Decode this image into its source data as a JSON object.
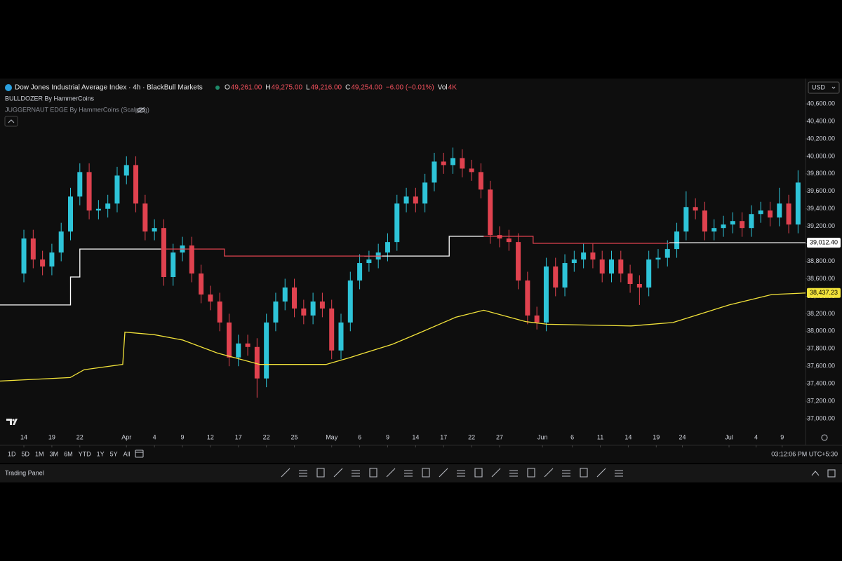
{
  "header": {
    "symbol": "Dow Jones Industrial Average Index · 4h · BlackBull Markets",
    "ohlc": [
      {
        "key": "O",
        "value": "49,261.00"
      },
      {
        "key": "H",
        "value": "49,275.00"
      },
      {
        "key": "L",
        "value": "49,216.00"
      },
      {
        "key": "C",
        "value": "49,254.00"
      }
    ],
    "change": "−6.00 (−0.01%)",
    "volume_key": "Vol",
    "volume": "4K",
    "indicators": [
      "BULLDOZER By HammerCoins",
      "JUGGERNAUT EDGE By HammerCoins (Scalping)"
    ],
    "currency": "USD"
  },
  "chart_data": {
    "type": "candlestick",
    "up_color": "#2ec4d8",
    "down_color": "#e0424f",
    "x": [
      0,
      1,
      2,
      3,
      4,
      5,
      6,
      7,
      8,
      9,
      10,
      11,
      12,
      13,
      14,
      15,
      16,
      17,
      18,
      19,
      20,
      21,
      22,
      23,
      24,
      25,
      26,
      27,
      28,
      29,
      30,
      31,
      32,
      33,
      34,
      35,
      36,
      37,
      38,
      39,
      40,
      41,
      42,
      43,
      44,
      45,
      46,
      47,
      48,
      49,
      50,
      51,
      52,
      53,
      54,
      55,
      56,
      57,
      58,
      59,
      60,
      61,
      62,
      63,
      64,
      65,
      66,
      67,
      68,
      69,
      70,
      71,
      72,
      73,
      74,
      75,
      76,
      77,
      78,
      79,
      80,
      81,
      82,
      83
    ],
    "open": [
      38660,
      39060,
      38820,
      38740,
      38900,
      39140,
      39540,
      39820,
      39380,
      39400,
      39460,
      39780,
      39900,
      39460,
      39140,
      39180,
      38620,
      38900,
      38980,
      38660,
      38420,
      38340,
      38100,
      37700,
      37860,
      37820,
      37460,
      38100,
      38340,
      38500,
      38260,
      38180,
      38340,
      38260,
      37780,
      38100,
      38580,
      38780,
      38820,
      38900,
      39020,
      39460,
      39540,
      39460,
      39700,
      39940,
      39900,
      39980,
      39860,
      39820,
      39620,
      39100,
      39060,
      39020,
      38580,
      38180,
      38100,
      38740,
      38500,
      38780,
      38820,
      38900,
      38820,
      38660,
      38820,
      38660,
      38540,
      38500,
      38820,
      38840,
      38940,
      39140,
      39420,
      39380,
      39140,
      39180,
      39220,
      39260,
      39180,
      39340,
      39380,
      39300,
      39460,
      39220
    ],
    "high": [
      39160,
      39160,
      38920,
      39000,
      39240,
      39640,
      39920,
      39920,
      39500,
      39560,
      39880,
      40000,
      40000,
      39560,
      39280,
      39280,
      39000,
      39080,
      39080,
      38760,
      38520,
      38440,
      38200,
      37960,
      37960,
      37920,
      38200,
      38440,
      38600,
      38600,
      38360,
      38440,
      38440,
      38360,
      38200,
      38680,
      38880,
      38920,
      39000,
      39120,
      39560,
      39640,
      39640,
      39800,
      40040,
      40040,
      40100,
      40080,
      39960,
      39920,
      39720,
      39200,
      39160,
      39120,
      38680,
      38280,
      38840,
      38840,
      38880,
      38920,
      39000,
      39000,
      38920,
      38920,
      38920,
      38760,
      38640,
      38920,
      38940,
      39040,
      39240,
      39600,
      39520,
      39480,
      39280,
      39320,
      39360,
      39360,
      39440,
      39480,
      39480,
      39640,
      39560,
      39840
    ],
    "low": [
      38560,
      38720,
      38640,
      38640,
      38800,
      39040,
      39440,
      39280,
      39280,
      39300,
      39360,
      39680,
      39360,
      39040,
      39040,
      38520,
      38520,
      38800,
      38560,
      38320,
      38240,
      38000,
      37600,
      37600,
      37720,
      37240,
      37360,
      38000,
      38240,
      38160,
      38080,
      38080,
      38160,
      37680,
      37680,
      38000,
      38480,
      38680,
      38720,
      38800,
      38920,
      39360,
      39360,
      39360,
      39600,
      39800,
      39800,
      39760,
      39720,
      39520,
      39000,
      38960,
      38920,
      38480,
      38080,
      38020,
      38000,
      38400,
      38400,
      38680,
      38720,
      38720,
      38560,
      38560,
      38560,
      38440,
      38300,
      38400,
      38720,
      38740,
      38840,
      39040,
      39280,
      39040,
      39040,
      39080,
      39120,
      39080,
      39080,
      39240,
      39200,
      39200,
      39120,
      39120
    ],
    "close": [
      39060,
      38820,
      38740,
      38900,
      39140,
      39540,
      39820,
      39380,
      39400,
      39460,
      39780,
      39900,
      39460,
      39140,
      39180,
      38620,
      38900,
      38980,
      38660,
      38420,
      38340,
      38100,
      37700,
      37860,
      37820,
      37460,
      38100,
      38340,
      38500,
      38260,
      38180,
      38340,
      38260,
      37780,
      38100,
      38580,
      38780,
      38820,
      38900,
      39020,
      39460,
      39540,
      39460,
      39700,
      39940,
      39900,
      39980,
      39860,
      39820,
      39620,
      39100,
      39060,
      39020,
      38580,
      38180,
      38100,
      38740,
      38500,
      38780,
      38820,
      38900,
      38820,
      38660,
      38820,
      38660,
      38540,
      38500,
      38820,
      38840,
      38940,
      39140,
      39420,
      39380,
      39140,
      39180,
      39220,
      39260,
      39180,
      39340,
      39380,
      39300,
      39460,
      39220,
      39700
    ],
    "series": [
      {
        "color": "#ffffff",
        "x": [
          -2.6,
          5,
          5,
          6,
          6,
          14.7,
          null,
          36.5,
          45.6,
          45.6,
          49.3,
          null,
          69.2,
          83.8
        ],
        "values": [
          38300,
          38300,
          38620,
          38620,
          38940,
          38940,
          null,
          38860,
          38860,
          39085,
          39085,
          null,
          39012.4,
          39012.4
        ]
      },
      {
        "color": "#e0424f",
        "x": [
          14.7,
          21.5,
          21.5,
          38.4,
          null,
          49.3,
          54.6,
          54.6,
          69.2
        ],
        "values": [
          38940,
          38940,
          38860,
          38860,
          null,
          39085,
          39085,
          39005,
          39005
        ]
      },
      {
        "color": "#f2e33a",
        "x": [
          -2.56,
          4.96,
          6.47,
          10.6,
          10.83,
          14,
          17,
          20.75,
          25.3,
          32.4,
          35,
          39.5,
          42.6,
          46.3,
          49.3,
          53.8,
          56.1,
          65.1,
          69.6,
          75.6,
          80.2,
          83.8
        ],
        "values": [
          37430,
          37470,
          37560,
          37620,
          37990,
          37960,
          37900,
          37750,
          37620,
          37620,
          37700,
          37850,
          37990,
          38160,
          38240,
          38110,
          38080,
          38060,
          38100,
          38300,
          38420,
          38437.23
        ]
      }
    ],
    "price_labels": [
      {
        "value": 39012.4,
        "label": "39,012.40",
        "color": "#ffffff"
      },
      {
        "value": 38437.23,
        "label": "38,437.23",
        "color": "#f2e33a"
      }
    ],
    "xlim": [
      -2.56,
      83.8
    ],
    "xticks": [
      {
        "value": 0,
        "label": "14"
      },
      {
        "value": 3,
        "label": "19"
      },
      {
        "value": 6,
        "label": "22"
      },
      {
        "value": 11,
        "label": "Apr"
      },
      {
        "value": 14,
        "label": "4"
      },
      {
        "value": 17,
        "label": "9"
      },
      {
        "value": 20,
        "label": "12"
      },
      {
        "value": 23,
        "label": "17"
      },
      {
        "value": 26,
        "label": "22"
      },
      {
        "value": 29,
        "label": "25"
      },
      {
        "value": 33,
        "label": "May"
      },
      {
        "value": 36,
        "label": "6"
      },
      {
        "value": 39,
        "label": "9"
      },
      {
        "value": 42,
        "label": "14"
      },
      {
        "value": 45,
        "label": "17"
      },
      {
        "value": 48,
        "label": "22"
      },
      {
        "value": 51,
        "label": "27"
      },
      {
        "value": 55.6,
        "label": "Jun"
      },
      {
        "value": 58.8,
        "label": "6"
      },
      {
        "value": 61.8,
        "label": "11"
      },
      {
        "value": 64.8,
        "label": "14"
      },
      {
        "value": 67.8,
        "label": "19"
      },
      {
        "value": 70.6,
        "label": "24"
      },
      {
        "value": 75.6,
        "label": "Jul"
      },
      {
        "value": 78.5,
        "label": "4"
      },
      {
        "value": 81.3,
        "label": "9"
      }
    ],
    "ylim": [
      36896,
      40665
    ],
    "yticks": [
      {
        "value": 37000,
        "label": "37,000.00"
      },
      {
        "value": 37200,
        "label": "37,200.00"
      },
      {
        "value": 37400,
        "label": "37,400.00"
      },
      {
        "value": 37600,
        "label": "37,600.00"
      },
      {
        "value": 37800,
        "label": "37,800.00"
      },
      {
        "value": 38000,
        "label": "38,000.00"
      },
      {
        "value": 38200,
        "label": "38,200.00"
      },
      {
        "value": 38400,
        "label": "38,400.00"
      },
      {
        "value": 38600,
        "label": "38,600.00"
      },
      {
        "value": 38800,
        "label": "38,800.00"
      },
      {
        "value": 39000,
        "label": "39,000.00"
      },
      {
        "value": 39200,
        "label": "39,200.00"
      },
      {
        "value": 39400,
        "label": "39,400.00"
      },
      {
        "value": 39600,
        "label": "39,600.00"
      },
      {
        "value": 39800,
        "label": "39,800.00"
      },
      {
        "value": 40000,
        "label": "40,000.00"
      },
      {
        "value": 40200,
        "label": "40,200.00"
      },
      {
        "value": 40400,
        "label": "40,400.00"
      },
      {
        "value": 40600,
        "label": "40,600.00"
      }
    ]
  },
  "footer": {
    "ranges": [
      "1D",
      "5D",
      "1M",
      "3M",
      "6M",
      "YTD",
      "1Y",
      "5Y",
      "All"
    ],
    "clock": "03:12:06 PM UTC+5:30",
    "panel": "Trading Panel"
  }
}
